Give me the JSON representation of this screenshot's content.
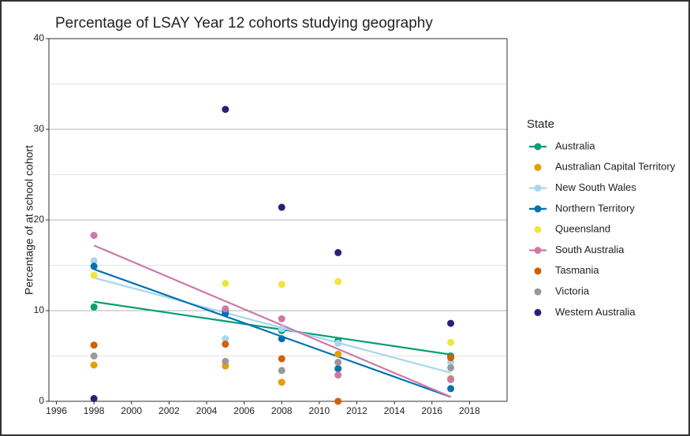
{
  "chart_data": {
    "type": "scatter",
    "title": "Percentage of LSAY Year 12 cohorts studying geography",
    "y_label": "Percentage of at school cohort",
    "legend_title": "State",
    "xlim": [
      1995.6,
      2020
    ],
    "xticks": [
      1996,
      1998,
      2000,
      2002,
      2004,
      2006,
      2008,
      2010,
      2012,
      2014,
      2016,
      2018
    ],
    "ylim": [
      0,
      40
    ],
    "yticks": [
      0,
      10,
      20,
      30,
      40
    ],
    "grid": true,
    "legend": "right",
    "x": [
      1998,
      2005,
      2008,
      2011,
      2017
    ],
    "series": [
      {
        "name": "Australia",
        "color": "#009e73",
        "trend": true,
        "values": [
          10.4,
          10.0,
          7.8,
          6.7,
          5.0
        ]
      },
      {
        "name": "Australian Capital Territory",
        "color": "#e69f00",
        "trend": false,
        "values": [
          4.0,
          3.9,
          2.1,
          5.2,
          2.5
        ]
      },
      {
        "name": "New South Wales",
        "color": "#a6d7f0",
        "trend": true,
        "values": [
          15.5,
          6.9,
          8.0,
          6.4,
          4.3
        ]
      },
      {
        "name": "Northern Territory",
        "color": "#0072b2",
        "trend": true,
        "values": [
          14.9,
          9.7,
          6.9,
          3.6,
          1.4
        ]
      },
      {
        "name": "Queensland",
        "color": "#f0e442",
        "trend": false,
        "values": [
          13.9,
          13.0,
          12.9,
          13.2,
          6.5
        ]
      },
      {
        "name": "South Australia",
        "color": "#cc79a7",
        "trend": true,
        "values": [
          18.3,
          10.2,
          9.1,
          2.9,
          2.4
        ]
      },
      {
        "name": "Tasmania",
        "color": "#d55e00",
        "trend": false,
        "values": [
          6.2,
          6.3,
          4.7,
          0.0,
          4.8
        ]
      },
      {
        "name": "Victoria",
        "color": "#999999",
        "trend": false,
        "values": [
          5.0,
          4.4,
          3.4,
          4.3,
          3.7
        ]
      },
      {
        "name": "Western Australia",
        "color": "#2c1f7a",
        "trend": false,
        "values": [
          0.3,
          32.2,
          21.4,
          16.4,
          8.6
        ]
      }
    ]
  }
}
